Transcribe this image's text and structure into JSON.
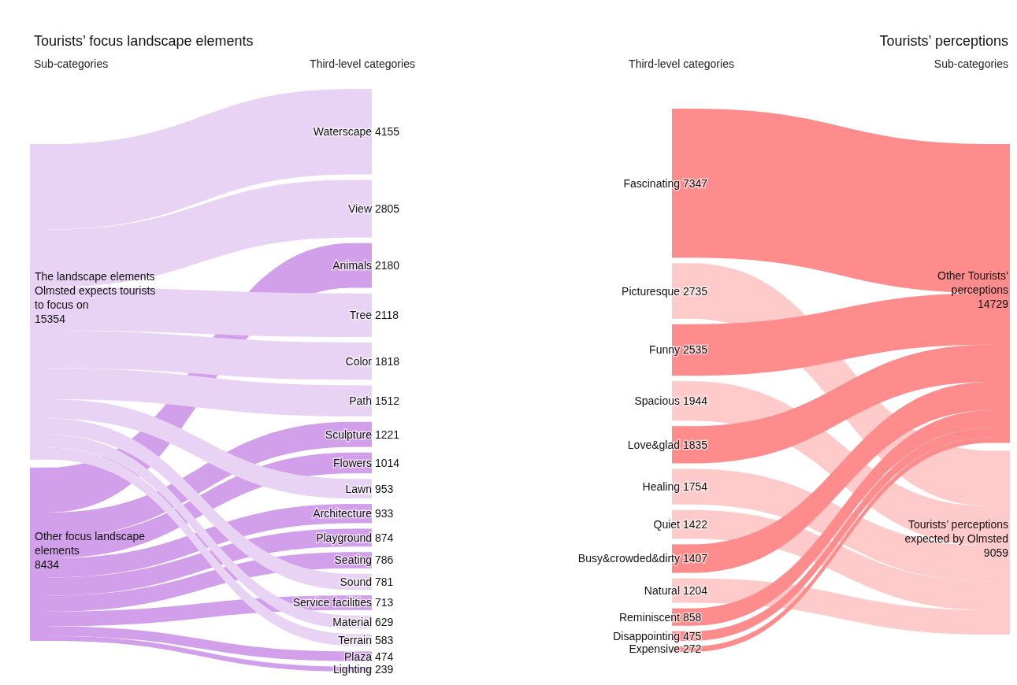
{
  "chart_data": [
    {
      "type": "other",
      "title": "Tourists’ focus landscape elements",
      "annotations": [
        "Sub-categories",
        "Third-level categories"
      ],
      "data_labels": true,
      "categories": [
        "The landscape elements Olmsted expects tourists to focus on",
        "Other focus landscape elements",
        "Waterscape",
        "View",
        "Animals",
        "Tree",
        "Color",
        "Path",
        "Sculpture",
        "Flowers",
        "Lawn",
        "Architecture",
        "Playground",
        "Seating",
        "Sound",
        "Service facilities",
        "Material",
        "Terrain",
        "Plaza",
        "Lighting"
      ],
      "values": [
        15354,
        8434,
        4155,
        2805,
        2180,
        2118,
        1818,
        1512,
        1221,
        1014,
        953,
        933,
        874,
        786,
        781,
        713,
        629,
        583,
        474,
        239
      ],
      "colors": [
        "#e9d3f5",
        "#d29fea",
        "#e9d3f5",
        "#e9d3f5",
        "#d29fea",
        "#e9d3f5",
        "#e9d3f5",
        "#e9d3f5",
        "#d29fea",
        "#d29fea",
        "#e9d3f5",
        "#d29fea",
        "#d29fea",
        "#d29fea",
        "#e9d3f5",
        "#d29fea",
        "#e9d3f5",
        "#e9d3f5",
        "#d29fea",
        "#d29fea"
      ]
    },
    {
      "type": "other",
      "title": "Tourists’ perceptions",
      "annotations": [
        "Third-level categories",
        "Sub-categories"
      ],
      "data_labels": true,
      "categories": [
        "Other Tourists’ perceptions",
        "Tourists’ perceptions expected by Olmsted",
        "Fascinating",
        "Picturesque",
        "Funny",
        "Spacious",
        "Love&glad",
        "Healing",
        "Quiet",
        "Busy&crowded&dirty",
        "Natural",
        "Reminiscent",
        "Disappointing",
        "Expensive"
      ],
      "values": [
        14729,
        9059,
        7347,
        2735,
        2535,
        1944,
        1835,
        1754,
        1422,
        1407,
        1204,
        858,
        475,
        272
      ],
      "colors": [
        "#ff8c8c",
        "#ffcaca",
        "#ff8c8c",
        "#ffcaca",
        "#ff8c8c",
        "#ffcaca",
        "#ff8c8c",
        "#ffcaca",
        "#ffcaca",
        "#ff8c8c",
        "#ffcaca",
        "#ff8c8c",
        "#ff8c8c",
        "#ff8c8c"
      ]
    }
  ]
}
